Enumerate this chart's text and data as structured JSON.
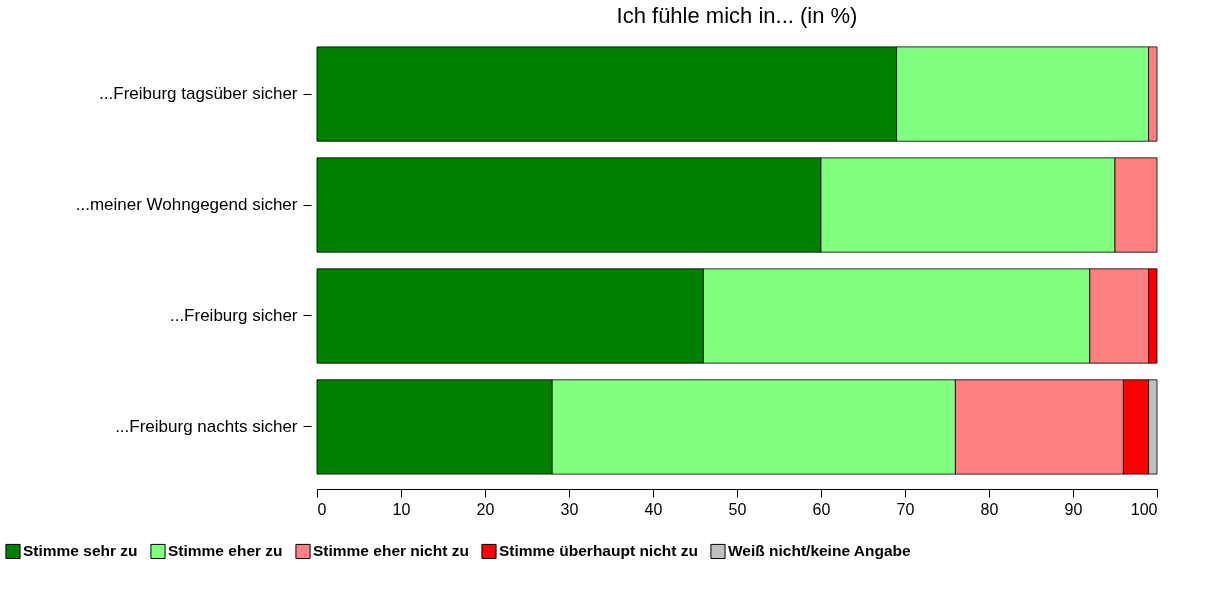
{
  "chart_data": {
    "type": "bar",
    "orientation": "horizontal",
    "stacked": true,
    "title": "Ich fühle mich in... (in %)",
    "categories": [
      "...Freiburg tagsüber sicher",
      "...meiner Wohngegend sicher",
      "...Freiburg sicher",
      "...Freiburg nachts sicher"
    ],
    "series": [
      {
        "name": "Stimme sehr zu",
        "color": "#008000",
        "values": [
          69,
          60,
          46,
          28
        ]
      },
      {
        "name": "Stimme eher zu",
        "color": "#80ff80",
        "values": [
          30,
          35,
          46,
          48
        ]
      },
      {
        "name": "Stimme eher nicht zu",
        "color": "#ff8080",
        "values": [
          1,
          5,
          7,
          20
        ]
      },
      {
        "name": "Stimme überhaupt nicht zu",
        "color": "#ff0000",
        "values": [
          0,
          0,
          1,
          3
        ]
      },
      {
        "name": "Weiß nicht/keine Angabe",
        "color": "#c0c0c0",
        "values": [
          0,
          0,
          0,
          1
        ]
      }
    ],
    "xlim": [
      0,
      100
    ],
    "xticks": [
      0,
      10,
      20,
      30,
      40,
      50,
      60,
      70,
      80,
      90,
      100
    ],
    "legend": "bottom"
  }
}
